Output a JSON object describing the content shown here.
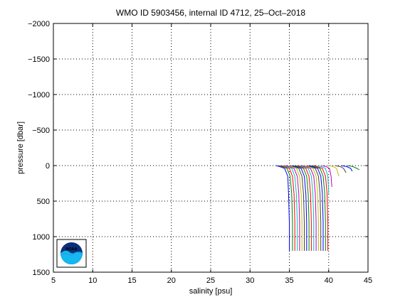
{
  "chart_data": {
    "type": "line",
    "title": "WMO ID 5903456, internal ID 4712, 25–Oct–2018",
    "xlabel": "salinity [psu]",
    "ylabel": "pressure [dbar]",
    "xlim": [
      5,
      45
    ],
    "ylim": [
      1500,
      -2000
    ],
    "y_reversed": true,
    "xticks": [
      5,
      10,
      15,
      20,
      25,
      30,
      35,
      40,
      45
    ],
    "xtick_labels": [
      "5",
      "10",
      "15",
      "20",
      "25",
      "30",
      "35",
      "40",
      "45"
    ],
    "yticks": [
      -2000,
      -1500,
      -1000,
      -500,
      0,
      500,
      1000,
      1500
    ],
    "ytick_labels": [
      "−2000",
      "−1500",
      "−1000",
      "−500",
      "0",
      "500",
      "1000",
      "1500"
    ],
    "grid": true,
    "grid_style": "dotted",
    "legend": "none",
    "profile_colors": [
      "#0000ff",
      "#008000",
      "#ff0000",
      "#00bfbf",
      "#bf00bf",
      "#bfbf00",
      "#404040"
    ],
    "series": [
      {
        "x": [
          33.3,
          33.8,
          34.4,
          34.8,
          34.9,
          35.0,
          35.0
        ],
        "y": [
          0,
          15,
          40,
          150,
          400,
          800,
          1200
        ]
      },
      {
        "x": [
          33.6,
          34.1,
          34.7,
          35.1,
          35.3,
          35.4,
          35.4
        ],
        "y": [
          0,
          15,
          40,
          150,
          400,
          800,
          1200
        ]
      },
      {
        "x": [
          33.9,
          34.4,
          35.0,
          35.4,
          35.6,
          35.7,
          35.7
        ],
        "y": [
          0,
          15,
          40,
          150,
          400,
          800,
          1200
        ]
      },
      {
        "x": [
          34.2,
          34.7,
          35.3,
          35.7,
          35.9,
          36.0,
          36.0
        ],
        "y": [
          0,
          15,
          40,
          150,
          400,
          800,
          1200
        ]
      },
      {
        "x": [
          34.5,
          35.0,
          35.6,
          36.0,
          36.2,
          36.3,
          36.3
        ],
        "y": [
          0,
          15,
          40,
          150,
          400,
          800,
          1200
        ]
      },
      {
        "x": [
          34.8,
          35.3,
          35.9,
          36.3,
          36.5,
          36.6,
          36.6
        ],
        "y": [
          0,
          15,
          40,
          150,
          400,
          800,
          1200
        ]
      },
      {
        "x": [
          35.1,
          35.6,
          36.2,
          36.6,
          36.8,
          36.9,
          36.9
        ],
        "y": [
          0,
          15,
          40,
          150,
          400,
          800,
          1200
        ]
      },
      {
        "x": [
          35.4,
          35.9,
          36.5,
          36.9,
          37.1,
          37.2,
          37.2
        ],
        "y": [
          0,
          15,
          40,
          150,
          400,
          800,
          1200
        ]
      },
      {
        "x": [
          35.7,
          36.2,
          36.8,
          37.2,
          37.4,
          37.5,
          37.5
        ],
        "y": [
          0,
          15,
          40,
          150,
          400,
          800,
          1200
        ]
      },
      {
        "x": [
          36.0,
          36.5,
          37.1,
          37.5,
          37.7,
          37.8,
          37.8
        ],
        "y": [
          0,
          15,
          40,
          150,
          400,
          800,
          1200
        ]
      },
      {
        "x": [
          36.3,
          36.8,
          37.4,
          37.8,
          38.0,
          38.1,
          38.1
        ],
        "y": [
          0,
          15,
          40,
          150,
          400,
          800,
          1200
        ]
      },
      {
        "x": [
          36.6,
          37.1,
          37.7,
          38.1,
          38.3,
          38.4,
          38.4
        ],
        "y": [
          0,
          15,
          40,
          150,
          400,
          800,
          1200
        ]
      },
      {
        "x": [
          36.9,
          37.4,
          38.0,
          38.4,
          38.6,
          38.7,
          38.7
        ],
        "y": [
          0,
          15,
          40,
          150,
          400,
          800,
          1200
        ]
      },
      {
        "x": [
          37.2,
          37.7,
          38.3,
          38.7,
          38.9,
          39.0,
          39.0
        ],
        "y": [
          0,
          15,
          40,
          150,
          400,
          800,
          1200
        ]
      },
      {
        "x": [
          37.5,
          38.0,
          38.6,
          39.0,
          39.2,
          39.3,
          39.3
        ],
        "y": [
          0,
          15,
          40,
          150,
          400,
          800,
          1200
        ]
      },
      {
        "x": [
          37.8,
          38.3,
          38.9,
          39.3,
          39.5,
          39.6,
          39.6
        ],
        "y": [
          0,
          15,
          40,
          150,
          400,
          800,
          1200
        ]
      },
      {
        "x": [
          38.1,
          38.6,
          39.2,
          39.6,
          39.8,
          39.9,
          39.9
        ],
        "y": [
          0,
          15,
          40,
          150,
          400,
          800,
          1200
        ]
      },
      {
        "x": [
          38.6,
          39.1,
          39.6,
          39.9,
          40.0
        ],
        "y": [
          0,
          15,
          40,
          150,
          400
        ]
      },
      {
        "x": [
          39.2,
          39.7,
          40.1,
          40.3,
          40.4
        ],
        "y": [
          0,
          15,
          40,
          150,
          300
        ]
      },
      {
        "x": [
          40.0,
          40.6,
          41.0,
          41.3
        ],
        "y": [
          0,
          15,
          40,
          150
        ]
      },
      {
        "x": [
          40.8,
          41.5,
          41.9,
          42.2
        ],
        "y": [
          0,
          15,
          40,
          100
        ]
      },
      {
        "x": [
          41.6,
          42.3,
          42.8,
          43.0
        ],
        "y": [
          0,
          15,
          40,
          80
        ]
      },
      {
        "x": [
          42.4,
          43.1,
          43.6,
          43.9
        ],
        "y": [
          0,
          15,
          40,
          60
        ]
      }
    ]
  },
  "logo": {
    "text": "NOAA",
    "colors": {
      "frame": "#000000",
      "sky": "#0b2f78",
      "wave": "#1ea6e6",
      "water": "#15b8f0"
    }
  }
}
